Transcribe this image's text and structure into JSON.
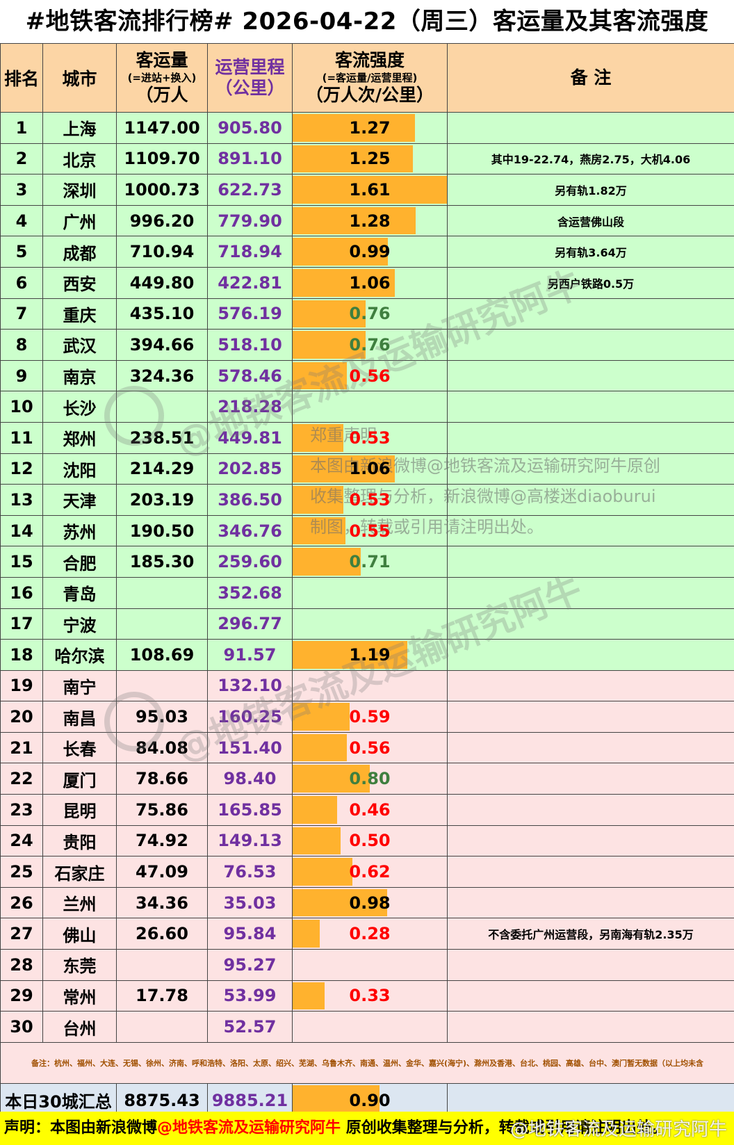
{
  "title": "#地铁客流排行榜# 2026-04-22（周三）客运量及其客流强度",
  "header": {
    "rank": "排名",
    "city": "城市",
    "volume_l1": "客运量",
    "volume_l2": "(=进站+换入)",
    "volume_l3": "（万人",
    "km_l1": "运营里程",
    "km_l2": "（公里）",
    "flow_l1": "客流强度",
    "flow_l2": "(=客运量/运营里程)",
    "flow_l3": "（万人次/公里）",
    "note": "备 注"
  },
  "rows": [
    {
      "rank": "1",
      "city": "上海",
      "volume": "1147.00",
      "km": "905.80",
      "flow": "1.27",
      "flow_num": 1.27,
      "color": "black",
      "note": "",
      "group": "g"
    },
    {
      "rank": "2",
      "city": "北京",
      "volume": "1109.70",
      "km": "891.10",
      "flow": "1.25",
      "flow_num": 1.25,
      "color": "black",
      "note": "其中19-22.74，燕房2.75，大机4.06",
      "group": "g"
    },
    {
      "rank": "3",
      "city": "深圳",
      "volume": "1000.73",
      "km": "622.73",
      "flow": "1.61",
      "flow_num": 1.61,
      "color": "black",
      "note": "另有轨1.82万",
      "group": "g"
    },
    {
      "rank": "4",
      "city": "广州",
      "volume": "996.20",
      "km": "779.90",
      "flow": "1.28",
      "flow_num": 1.28,
      "color": "black",
      "note": "含运营佛山段",
      "group": "g"
    },
    {
      "rank": "5",
      "city": "成都",
      "volume": "710.94",
      "km": "718.94",
      "flow": "0.99",
      "flow_num": 0.99,
      "color": "black",
      "note": "另有轨3.64万",
      "group": "g"
    },
    {
      "rank": "6",
      "city": "西安",
      "volume": "449.80",
      "km": "422.81",
      "flow": "1.06",
      "flow_num": 1.06,
      "color": "black",
      "note": "另西户铁路0.5万",
      "group": "g"
    },
    {
      "rank": "7",
      "city": "重庆",
      "volume": "435.10",
      "km": "576.19",
      "flow": "0.76",
      "flow_num": 0.76,
      "color": "green",
      "note": "",
      "group": "g"
    },
    {
      "rank": "8",
      "city": "武汉",
      "volume": "394.66",
      "km": "518.10",
      "flow": "0.76",
      "flow_num": 0.76,
      "color": "green",
      "note": "",
      "group": "g"
    },
    {
      "rank": "9",
      "city": "南京",
      "volume": "324.36",
      "km": "578.46",
      "flow": "0.56",
      "flow_num": 0.56,
      "color": "red",
      "note": "",
      "group": "g"
    },
    {
      "rank": "10",
      "city": "长沙",
      "volume": "",
      "km": "218.28",
      "flow": "",
      "flow_num": 0,
      "color": "black",
      "note": "",
      "group": "g"
    },
    {
      "rank": "11",
      "city": "郑州",
      "volume": "238.51",
      "km": "449.81",
      "flow": "0.53",
      "flow_num": 0.53,
      "color": "red",
      "note": "",
      "group": "g"
    },
    {
      "rank": "12",
      "city": "沈阳",
      "volume": "214.29",
      "km": "202.85",
      "flow": "1.06",
      "flow_num": 1.06,
      "color": "black",
      "note": "",
      "group": "g"
    },
    {
      "rank": "13",
      "city": "天津",
      "volume": "203.19",
      "km": "386.50",
      "flow": "0.53",
      "flow_num": 0.53,
      "color": "red",
      "note": "",
      "group": "g"
    },
    {
      "rank": "14",
      "city": "苏州",
      "volume": "190.50",
      "km": "346.76",
      "flow": "0.55",
      "flow_num": 0.55,
      "color": "red",
      "note": "",
      "group": "g"
    },
    {
      "rank": "15",
      "city": "合肥",
      "volume": "185.30",
      "km": "259.60",
      "flow": "0.71",
      "flow_num": 0.71,
      "color": "green",
      "note": "",
      "group": "g"
    },
    {
      "rank": "16",
      "city": "青岛",
      "volume": "",
      "km": "352.68",
      "flow": "",
      "flow_num": 0,
      "color": "black",
      "note": "",
      "group": "g"
    },
    {
      "rank": "17",
      "city": "宁波",
      "volume": "",
      "km": "296.77",
      "flow": "",
      "flow_num": 0,
      "color": "black",
      "note": "",
      "group": "g"
    },
    {
      "rank": "18",
      "city": "哈尔滨",
      "volume": "108.69",
      "km": "91.57",
      "flow": "1.19",
      "flow_num": 1.19,
      "color": "black",
      "note": "",
      "group": "g"
    },
    {
      "rank": "19",
      "city": "南宁",
      "volume": "",
      "km": "132.10",
      "flow": "",
      "flow_num": 0,
      "color": "black",
      "note": "",
      "group": "p"
    },
    {
      "rank": "20",
      "city": "南昌",
      "volume": "95.03",
      "km": "160.25",
      "flow": "0.59",
      "flow_num": 0.59,
      "color": "red",
      "note": "",
      "group": "p"
    },
    {
      "rank": "21",
      "city": "长春",
      "volume": "84.08",
      "km": "151.40",
      "flow": "0.56",
      "flow_num": 0.56,
      "color": "red",
      "note": "",
      "group": "p"
    },
    {
      "rank": "22",
      "city": "厦门",
      "volume": "78.66",
      "km": "98.40",
      "flow": "0.80",
      "flow_num": 0.8,
      "color": "green",
      "note": "",
      "group": "p"
    },
    {
      "rank": "23",
      "city": "昆明",
      "volume": "75.86",
      "km": "165.85",
      "flow": "0.46",
      "flow_num": 0.46,
      "color": "red",
      "note": "",
      "group": "p"
    },
    {
      "rank": "24",
      "city": "贵阳",
      "volume": "74.92",
      "km": "149.13",
      "flow": "0.50",
      "flow_num": 0.5,
      "color": "red",
      "note": "",
      "group": "p"
    },
    {
      "rank": "25",
      "city": "石家庄",
      "volume": "47.09",
      "km": "76.53",
      "flow": "0.62",
      "flow_num": 0.62,
      "color": "red",
      "note": "",
      "group": "p"
    },
    {
      "rank": "26",
      "city": "兰州",
      "volume": "34.36",
      "km": "35.03",
      "flow": "0.98",
      "flow_num": 0.98,
      "color": "black",
      "note": "",
      "group": "p"
    },
    {
      "rank": "27",
      "city": "佛山",
      "volume": "26.60",
      "km": "95.84",
      "flow": "0.28",
      "flow_num": 0.28,
      "color": "red",
      "note": "不含委托广州运营段，另南海有轨2.35万",
      "group": "p"
    },
    {
      "rank": "28",
      "city": "东莞",
      "volume": "",
      "km": "95.27",
      "flow": "",
      "flow_num": 0,
      "color": "black",
      "note": "",
      "group": "p"
    },
    {
      "rank": "29",
      "city": "常州",
      "volume": "17.78",
      "km": "53.99",
      "flow": "0.33",
      "flow_num": 0.33,
      "color": "red",
      "note": "",
      "group": "p"
    },
    {
      "rank": "30",
      "city": "台州",
      "volume": "",
      "km": "52.57",
      "flow": "",
      "flow_num": 0,
      "color": "black",
      "note": "",
      "group": "p"
    }
  ],
  "flow_bar_max": 1.61,
  "footnote": "备注：杭州、福州、大连、无锡、徐州、济南、呼和浩特、洛阳、太原、绍兴、芜湖、乌鲁木齐、南通、温州、金华、嘉兴(海宁)、滁州及香港、台北、桃园、高雄、台中、澳门暂无数据（以上均未含",
  "total": {
    "label": "本日30城汇总",
    "volume": "8875.43",
    "km": "9885.21",
    "flow": "0.90",
    "flow_num": 0.9
  },
  "declaration": {
    "prefix": "声明：本图由新浪微博",
    "handle": "@地铁客流及运输研究阿牛",
    "suffix": " 原创收集整理与分析，转载或引用请注明出处。"
  },
  "notice": {
    "line1": "郑重声明",
    "line2": "本图由新浪微博@地铁客流及运输研究阿牛原创",
    "line3": "收集整理与分析，新浪微博@高楼迷diaoburui",
    "line4": "制图，转载或引用请注明出处。"
  },
  "watermark": "@地铁客流及运输研究阿牛",
  "corner_watermark": "@地铁客流及运输研究阿牛",
  "colors": {
    "header_bg": "#fcd5a5",
    "green_row": "#ccffcc",
    "pink_row": "#fde3e3",
    "bar": "#ffb22e",
    "km_text": "#7030a0",
    "red_text": "#ff0000",
    "green_text": "#3f7f3f",
    "total_bg": "#dce6f1",
    "decl_bg": "#ffff00"
  }
}
